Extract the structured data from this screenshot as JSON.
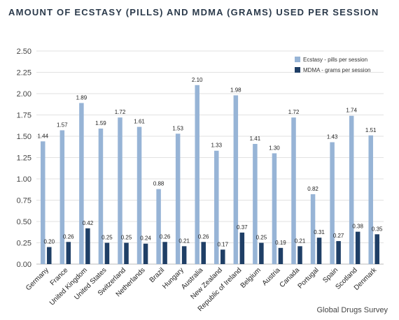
{
  "chart_data": {
    "type": "bar",
    "title": "AMOUNT OF ECSTASY (PILLS) AND MDMA (GRAMS) USED PER SESSION",
    "xlabel": "",
    "ylabel": "",
    "ylim": [
      0,
      2.5
    ],
    "yticks": [
      "0.00",
      "0.25",
      "0.50",
      "0.75",
      "1.00",
      "1.25",
      "1.50",
      "1.75",
      "2.00",
      "2.25",
      "2.50"
    ],
    "grid": true,
    "legend_position": "top-right",
    "categories": [
      "Germany",
      "France",
      "United Kingdom",
      "United States",
      "Switzerland",
      "Netherlands",
      "Brazil",
      "Hungary",
      "Australia",
      "New Zealand",
      "Republic of Ireland",
      "Belgium",
      "Austria",
      "Canada",
      "Portugal",
      "Spain",
      "Scotland",
      "Denmark"
    ],
    "series": [
      {
        "name": "Ecstasy - pills per session",
        "color": "#97b4d6",
        "values": [
          1.44,
          1.57,
          1.89,
          1.59,
          1.72,
          1.61,
          0.88,
          1.53,
          2.1,
          1.33,
          1.98,
          1.41,
          1.3,
          1.72,
          0.82,
          1.43,
          1.74,
          1.51
        ],
        "labels": [
          "1.44",
          "1.57",
          "1.89",
          "1.59",
          "1.72",
          "1.61",
          "0.88",
          "1.53",
          "2.10",
          "1.33",
          "1.98",
          "1.41",
          "1.30",
          "1.72",
          "0.82",
          "1.43",
          "1.74",
          "1.51"
        ]
      },
      {
        "name": "MDMA - grams per session",
        "color": "#1f3f66",
        "values": [
          0.2,
          0.26,
          0.42,
          0.25,
          0.25,
          0.24,
          0.26,
          0.21,
          0.26,
          0.17,
          0.37,
          0.25,
          0.19,
          0.21,
          0.31,
          0.27,
          0.38,
          0.35
        ],
        "labels": [
          "0.20",
          "0.26",
          "0.42",
          "0.25",
          "0.25",
          "0.24",
          "0.26",
          "0.21",
          "0.26",
          "0.17",
          "0.37",
          "0.25",
          "0.19",
          "0.21",
          "0.31",
          "0.27",
          "0.38",
          "0.35"
        ]
      }
    ]
  },
  "source": "Global Drugs Survey"
}
